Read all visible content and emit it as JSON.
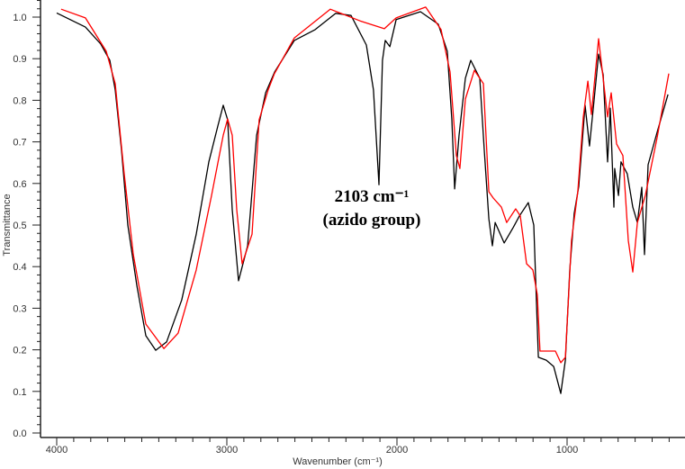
{
  "chart_data": {
    "type": "line",
    "title": "",
    "xlabel": "Wavenumber (cm⁻¹)",
    "ylabel": "Transmittance",
    "xlim": [
      4095,
      310
    ],
    "ylim": [
      -0.01,
      1.04
    ],
    "x_reversed": true,
    "grid": false,
    "legend": "none",
    "x_ticks": [
      4000,
      3000,
      2000,
      1000
    ],
    "x_tick_labels": [
      "4000",
      "3000",
      "2000",
      "1000"
    ],
    "y_ticks": [
      0.0,
      0.1,
      0.2,
      0.3,
      0.4,
      0.5,
      0.6,
      0.7,
      0.8,
      0.9,
      1.0
    ],
    "y_tick_labels": [
      "0.0",
      "0.1",
      "0.2",
      "0.3",
      "0.4",
      "0.5",
      "0.6",
      "0.7",
      "0.8",
      "0.9",
      "1.0"
    ],
    "annotations": [
      {
        "text": "2103 cm⁻¹",
        "x": 2103
      },
      {
        "text": "(azido group)",
        "x": 2103
      }
    ],
    "series": [
      {
        "color": "#000000",
        "x": [
          4000,
          3831,
          3741,
          3688,
          3656,
          3619,
          3582,
          3529,
          3476,
          3418,
          3354,
          3265,
          3180,
          3106,
          3053,
          3021,
          2995,
          2968,
          2931,
          2878,
          2825,
          2772,
          2719,
          2603,
          2481,
          2360,
          2270,
          2180,
          2138,
          2106,
          2085,
          2069,
          2042,
          2005,
          1862,
          1757,
          1704,
          1677,
          1661,
          1635,
          1598,
          1566,
          1513,
          1487,
          1460,
          1439,
          1423,
          1370,
          1317,
          1280,
          1228,
          1196,
          1169,
          1122,
          1079,
          1037,
          1010,
          984,
          958,
          931,
          894,
          868,
          841,
          815,
          788,
          762,
          746,
          725,
          720,
          698,
          683,
          646,
          614,
          587,
          561,
          545,
          524,
          471,
          407
        ],
        "y": [
          1.01,
          0.976,
          0.935,
          0.896,
          0.825,
          0.68,
          0.5,
          0.355,
          0.234,
          0.199,
          0.219,
          0.32,
          0.478,
          0.652,
          0.738,
          0.788,
          0.753,
          0.537,
          0.366,
          0.45,
          0.716,
          0.818,
          0.868,
          0.944,
          0.97,
          1.009,
          1.004,
          0.933,
          0.825,
          0.597,
          0.896,
          0.944,
          0.929,
          0.994,
          1.013,
          0.983,
          0.918,
          0.753,
          0.587,
          0.716,
          0.853,
          0.896,
          0.853,
          0.68,
          0.515,
          0.45,
          0.506,
          0.457,
          0.494,
          0.522,
          0.554,
          0.5,
          0.182,
          0.175,
          0.16,
          0.095,
          0.175,
          0.392,
          0.528,
          0.593,
          0.788,
          0.69,
          0.803,
          0.911,
          0.861,
          0.652,
          0.781,
          0.543,
          0.636,
          0.571,
          0.652,
          0.623,
          0.543,
          0.506,
          0.591,
          0.429,
          0.645,
          0.723,
          0.814
        ]
      },
      {
        "color": "#ff0000",
        "x": [
          3974,
          3831,
          3709,
          3656,
          3603,
          3550,
          3476,
          3370,
          3286,
          3180,
          3090,
          3021,
          2995,
          2968,
          2942,
          2910,
          2878,
          2852,
          2810,
          2757,
          2720,
          2603,
          2392,
          2217,
          2074,
          2005,
          1831,
          1741,
          1688,
          1651,
          1630,
          1598,
          1545,
          1492,
          1460,
          1434,
          1386,
          1355,
          1302,
          1275,
          1238,
          1201,
          1175,
          1159,
          1069,
          1037,
          1010,
          974,
          937,
          905,
          878,
          857,
          815,
          762,
          741,
          709,
          672,
          640,
          614,
          587,
          540,
          471,
          402
        ],
        "y": [
          1.019,
          0.998,
          0.918,
          0.84,
          0.623,
          0.429,
          0.262,
          0.203,
          0.24,
          0.392,
          0.571,
          0.716,
          0.755,
          0.716,
          0.537,
          0.407,
          0.446,
          0.478,
          0.753,
          0.825,
          0.864,
          0.95,
          1.019,
          0.991,
          0.972,
          0.998,
          1.024,
          0.97,
          0.868,
          0.667,
          0.636,
          0.803,
          0.872,
          0.84,
          0.58,
          0.565,
          0.543,
          0.506,
          0.539,
          0.522,
          0.407,
          0.392,
          0.333,
          0.197,
          0.197,
          0.169,
          0.182,
          0.463,
          0.58,
          0.76,
          0.846,
          0.766,
          0.948,
          0.76,
          0.818,
          0.695,
          0.667,
          0.463,
          0.387,
          0.506,
          0.571,
          0.71,
          0.864
        ]
      }
    ]
  }
}
